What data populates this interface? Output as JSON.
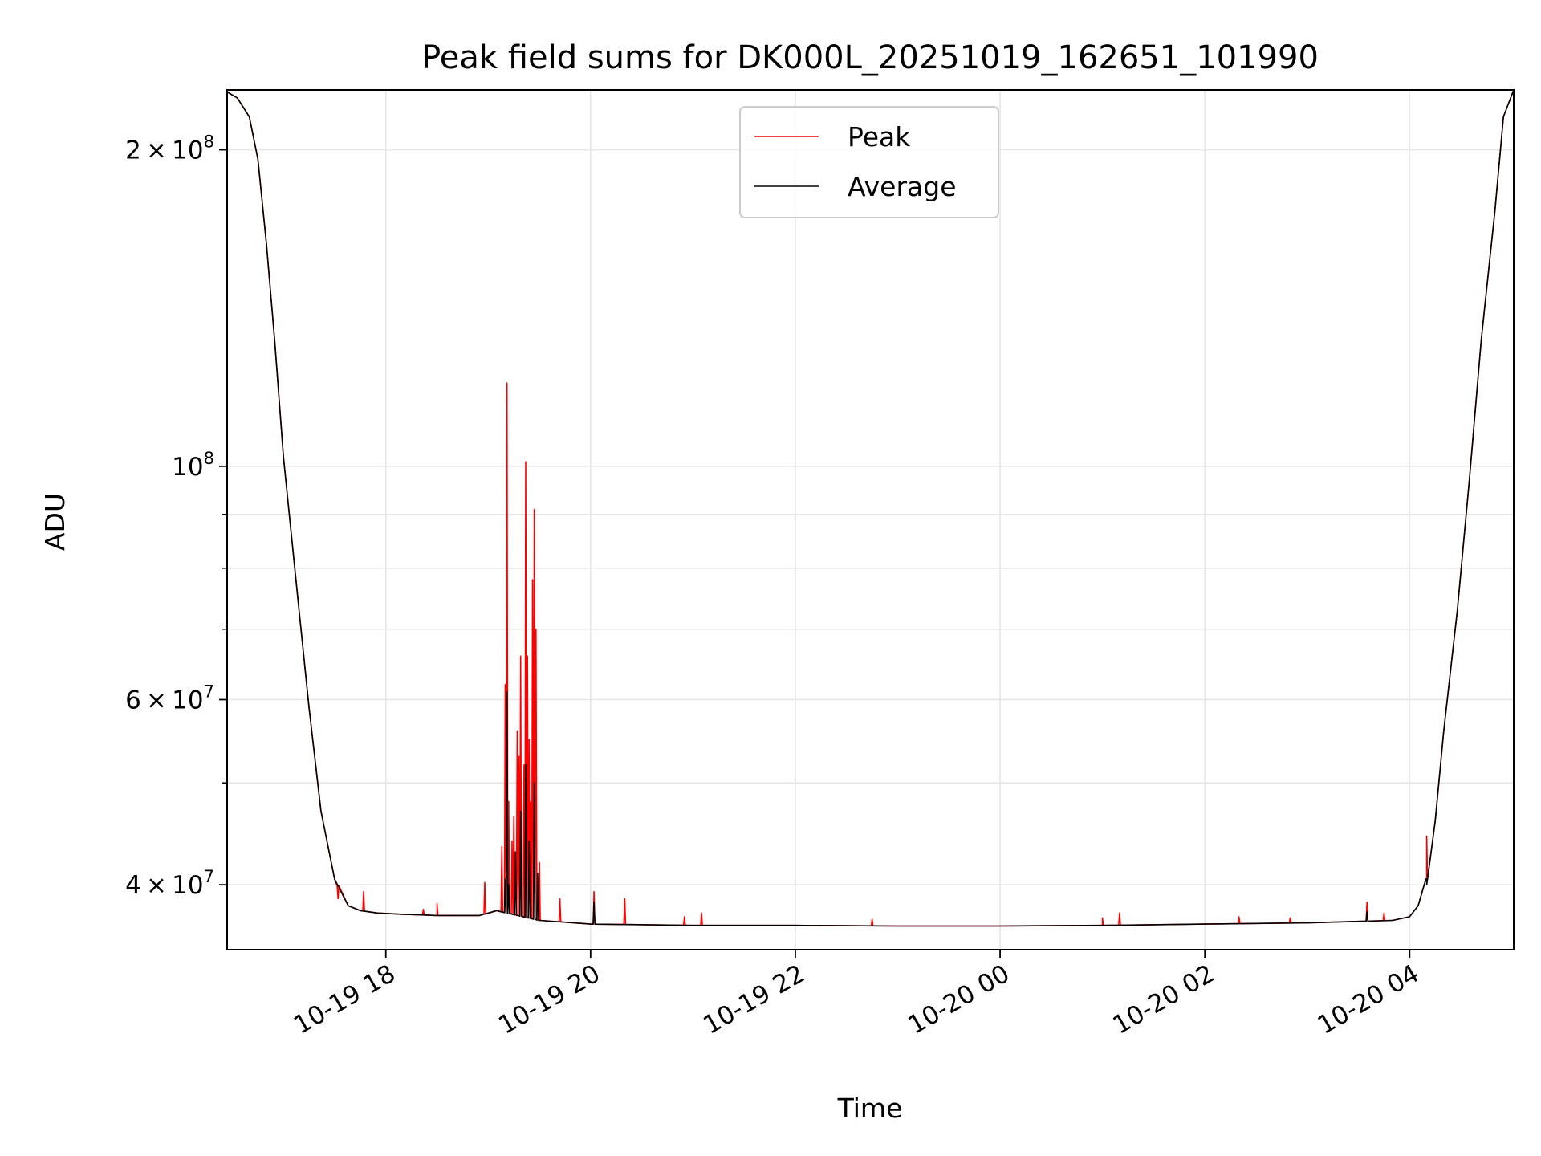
{
  "chart_data": {
    "type": "line",
    "title": "Peak field sums for DK000L_20251019_162651_101990",
    "xlabel": "Time",
    "ylabel": "ADU",
    "y_scale": "log",
    "ylim": [
      34700000,
      228000000
    ],
    "xlim": [
      "2025-10-19 16:27",
      "2025-10-20 05:01"
    ],
    "grid": true,
    "legend_position": "top-center",
    "x_ticks": [
      {
        "value": "2025-10-19 18:00",
        "label": "10-19 18"
      },
      {
        "value": "2025-10-19 20:00",
        "label": "10-19 20"
      },
      {
        "value": "2025-10-19 22:00",
        "label": "10-19 22"
      },
      {
        "value": "2025-10-20 00:00",
        "label": "10-20 00"
      },
      {
        "value": "2025-10-20 02:00",
        "label": "10-20 02"
      },
      {
        "value": "2025-10-20 04:00",
        "label": "10-20 04"
      }
    ],
    "y_major_ticks": [
      {
        "value": 40000000,
        "mantissa": "4",
        "exponent": "7"
      },
      {
        "value": 60000000,
        "mantissa": "6",
        "exponent": "7"
      },
      {
        "value": 100000000,
        "mantissa": "",
        "exponent": "8"
      },
      {
        "value": 200000000,
        "mantissa": "2",
        "exponent": "8"
      }
    ],
    "y_minor_gridlines": [
      50000000,
      70000000,
      80000000,
      90000000
    ],
    "series": [
      {
        "name": "Peak",
        "color": "#ff0000",
        "baseline_x": [
          "2025-10-19 16:27",
          "2025-10-19 16:33",
          "2025-10-19 16:40",
          "2025-10-19 16:45",
          "2025-10-19 16:50",
          "2025-10-19 16:55",
          "2025-10-19 17:00",
          "2025-10-19 17:07",
          "2025-10-19 17:15",
          "2025-10-19 17:22",
          "2025-10-19 17:30",
          "2025-10-19 17:38",
          "2025-10-19 17:45",
          "2025-10-19 17:55",
          "2025-10-19 18:10",
          "2025-10-19 18:30",
          "2025-10-19 18:55",
          "2025-10-19 19:05",
          "2025-10-19 19:30",
          "2025-10-19 19:40",
          "2025-10-19 20:00",
          "2025-10-19 21:00",
          "2025-10-19 22:00",
          "2025-10-19 23:00",
          "2025-10-20 00:00",
          "2025-10-20 01:00",
          "2025-10-20 02:00",
          "2025-10-20 03:00",
          "2025-10-20 03:50",
          "2025-10-20 04:00",
          "2025-10-20 04:05",
          "2025-10-20 04:10",
          "2025-10-20 04:15",
          "2025-10-20 04:20",
          "2025-10-20 04:28",
          "2025-10-20 04:35",
          "2025-10-20 04:42",
          "2025-10-20 04:50",
          "2025-10-20 04:55",
          "2025-10-20 05:01"
        ],
        "baseline_y": [
          227000000,
          224000000,
          215000000,
          196000000,
          163000000,
          131000000,
          102000000,
          79000000,
          59000000,
          47000000,
          40500000,
          38200000,
          37800000,
          37600000,
          37500000,
          37400000,
          37400000,
          37800000,
          37000000,
          36900000,
          36700000,
          36600000,
          36600000,
          36550000,
          36550000,
          36600000,
          36700000,
          36800000,
          37000000,
          37300000,
          38200000,
          40500000,
          46000000,
          56000000,
          73000000,
          97000000,
          132000000,
          175000000,
          215000000,
          228000000
        ],
        "spikes": [
          {
            "x": "2025-10-19 17:32",
            "y": 38800000
          },
          {
            "x": "2025-10-19 17:47",
            "y": 39400000
          },
          {
            "x": "2025-10-19 18:22",
            "y": 37900000
          },
          {
            "x": "2025-10-19 18:30",
            "y": 38400000
          },
          {
            "x": "2025-10-19 18:58",
            "y": 40200000
          },
          {
            "x": "2025-10-19 19:08",
            "y": 43500000
          },
          {
            "x": "2025-10-19 19:10",
            "y": 62000000
          },
          {
            "x": "2025-10-19 19:11",
            "y": 120000000
          },
          {
            "x": "2025-10-19 19:12",
            "y": 48000000
          },
          {
            "x": "2025-10-19 19:14",
            "y": 44000000
          },
          {
            "x": "2025-10-19 19:15",
            "y": 46500000
          },
          {
            "x": "2025-10-19 19:17",
            "y": 56000000
          },
          {
            "x": "2025-10-19 19:18",
            "y": 53000000
          },
          {
            "x": "2025-10-19 19:19",
            "y": 66000000
          },
          {
            "x": "2025-10-19 19:21",
            "y": 52000000
          },
          {
            "x": "2025-10-19 19:22",
            "y": 101000000
          },
          {
            "x": "2025-10-19 19:23",
            "y": 66000000
          },
          {
            "x": "2025-10-19 19:24",
            "y": 55000000
          },
          {
            "x": "2025-10-19 19:25",
            "y": 48000000
          },
          {
            "x": "2025-10-19 19:26",
            "y": 78000000
          },
          {
            "x": "2025-10-19 19:27",
            "y": 91000000
          },
          {
            "x": "2025-10-19 19:28",
            "y": 70000000
          },
          {
            "x": "2025-10-19 19:30",
            "y": 42000000
          },
          {
            "x": "2025-10-19 19:42",
            "y": 38800000
          },
          {
            "x": "2025-10-19 20:02",
            "y": 39400000
          },
          {
            "x": "2025-10-19 20:20",
            "y": 38800000
          },
          {
            "x": "2025-10-19 20:55",
            "y": 37300000
          },
          {
            "x": "2025-10-19 21:05",
            "y": 37600000
          },
          {
            "x": "2025-10-19 22:45",
            "y": 37100000
          },
          {
            "x": "2025-10-20 01:00",
            "y": 37200000
          },
          {
            "x": "2025-10-20 01:10",
            "y": 37600000
          },
          {
            "x": "2025-10-20 02:20",
            "y": 37300000
          },
          {
            "x": "2025-10-20 02:50",
            "y": 37200000
          },
          {
            "x": "2025-10-20 03:35",
            "y": 38500000
          },
          {
            "x": "2025-10-20 03:45",
            "y": 37600000
          },
          {
            "x": "2025-10-20 04:10",
            "y": 44500000
          }
        ]
      },
      {
        "name": "Average",
        "color": "#000000",
        "baseline_x": [
          "2025-10-19 16:27",
          "2025-10-19 16:33",
          "2025-10-19 16:40",
          "2025-10-19 16:45",
          "2025-10-19 16:50",
          "2025-10-19 16:55",
          "2025-10-19 17:00",
          "2025-10-19 17:07",
          "2025-10-19 17:15",
          "2025-10-19 17:22",
          "2025-10-19 17:30",
          "2025-10-19 17:38",
          "2025-10-19 17:45",
          "2025-10-19 17:55",
          "2025-10-19 18:10",
          "2025-10-19 18:30",
          "2025-10-19 18:55",
          "2025-10-19 19:05",
          "2025-10-19 19:30",
          "2025-10-19 19:40",
          "2025-10-19 20:00",
          "2025-10-19 21:00",
          "2025-10-19 22:00",
          "2025-10-19 23:00",
          "2025-10-20 00:00",
          "2025-10-20 01:00",
          "2025-10-20 02:00",
          "2025-10-20 03:00",
          "2025-10-20 03:50",
          "2025-10-20 04:00",
          "2025-10-20 04:05",
          "2025-10-20 04:10",
          "2025-10-20 04:15",
          "2025-10-20 04:20",
          "2025-10-20 04:28",
          "2025-10-20 04:35",
          "2025-10-20 04:42",
          "2025-10-20 04:50",
          "2025-10-20 04:55",
          "2025-10-20 05:01"
        ],
        "baseline_y": [
          227000000,
          224000000,
          215000000,
          196000000,
          163000000,
          131000000,
          102000000,
          79000000,
          59000000,
          47000000,
          40500000,
          38200000,
          37800000,
          37600000,
          37500000,
          37400000,
          37400000,
          37800000,
          37000000,
          36900000,
          36700000,
          36600000,
          36600000,
          36550000,
          36550000,
          36600000,
          36700000,
          36800000,
          37000000,
          37300000,
          38200000,
          40500000,
          46000000,
          56000000,
          73000000,
          97000000,
          132000000,
          175000000,
          215000000,
          228000000
        ],
        "spikes": [
          {
            "x": "2025-10-19 19:10",
            "y": 40500000
          },
          {
            "x": "2025-10-19 19:11",
            "y": 61000000
          },
          {
            "x": "2025-10-19 19:12",
            "y": 40000000
          },
          {
            "x": "2025-10-19 19:16",
            "y": 43000000
          },
          {
            "x": "2025-10-19 19:19",
            "y": 47000000
          },
          {
            "x": "2025-10-19 19:22",
            "y": 52000000
          },
          {
            "x": "2025-10-19 19:24",
            "y": 44000000
          },
          {
            "x": "2025-10-19 19:27",
            "y": 50000000
          },
          {
            "x": "2025-10-19 19:29",
            "y": 41000000
          },
          {
            "x": "2025-10-19 20:02",
            "y": 38500000
          },
          {
            "x": "2025-10-20 03:35",
            "y": 37700000
          },
          {
            "x": "2025-10-20 04:10",
            "y": 40000000
          }
        ]
      }
    ]
  }
}
